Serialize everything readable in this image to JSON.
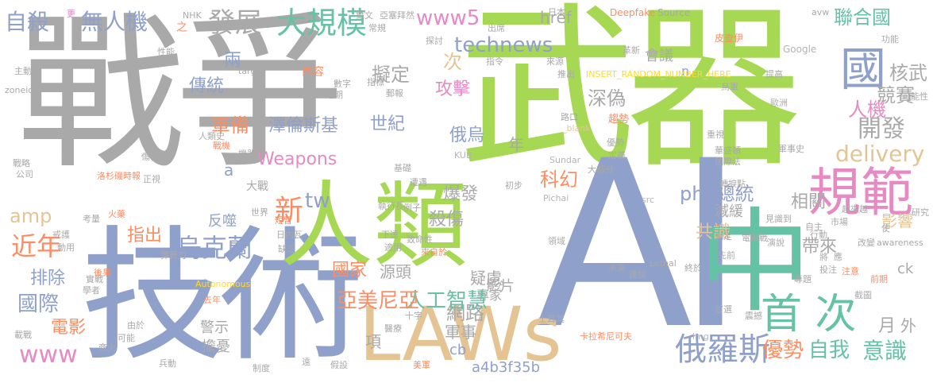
{
  "palette": {
    "gray": "#a9a9a9",
    "blue": "#8fa0cb",
    "green": "#a6d854",
    "teal": "#66c2a5",
    "orange": "#fc8d62",
    "pink": "#e78ac3",
    "tan": "#e5c494",
    "yellow": "#ffd92f"
  },
  "words": {
    "w_zhan_zheng": "戰爭",
    "w_wuqi": "武器",
    "w_ai": "AI",
    "w_jishu": "技術",
    "w_renlei": "人類",
    "w_zhong": "中",
    "w_laws": "LAWs",
    "w_guifan": "規範",
    "w_guo": "國",
    "w_dagui": "大規模",
    "w_fazhan": "發展",
    "w_zisha": "自殺",
    "w_wurenji": "無人機",
    "w_www5": "www5",
    "w_technews": "technews",
    "w_lianheguo": "聯合國",
    "w_hewu": "核武",
    "w_jingsai": "競賽",
    "w_renji": "人機",
    "w_kaifa": "開發",
    "w_delivery": "delivery",
    "w_xiangguan": "相關",
    "w_yingxiang": "影響",
    "w_dailai": "帶來",
    "w_jiansu": "減緩",
    "w_gongshi": "共識",
    "w_zongtong": "php總統",
    "w_shengce": "首 次",
    "w_eluosi": "俄羅斯",
    "w_youshi": "優勢",
    "w_ziwo": "自我",
    "w_yishi": "意識",
    "w_yue": "月",
    "w_wai": "外",
    "w_junshi": "軍事",
    "w_wanglu": "網路",
    "w_yingpian": "影片",
    "w_yilv": "疑慮",
    "w_zhuanjia": "專家",
    "w_ck": "ck",
    "w_rengong": "人工智慧",
    "w_yameiniya": "亞美尼亞",
    "w_guojia": "國家",
    "w_yuantou": "源頭",
    "w_wukelan": "烏克蘭",
    "w_zhichu": "指出",
    "w_fanshi": "反噬",
    "w_jinnian": "近年",
    "w_guoji": "國際",
    "w_paichu": "排除",
    "w_dianying": "電影",
    "w_www": "www",
    "w_amp": "amp",
    "w_xin": "新",
    "w_tw": "tw",
    "w_weapons": "Weapons",
    "w_a": "a",
    "w_dazhan": "大戰",
    "w_sha": "殺傷",
    "w_baofa": "爆發",
    "w_kehuan": "科幻",
    "w_nian": "年",
    "w_ewu": "俄烏",
    "w_shiji": "世紀",
    "w_zelunsiji": "澤倫斯基",
    "w_junbei": "軍備",
    "w_chuantong": "傳統",
    "w_liang": "兩",
    "w_nirding": "擬定",
    "w_gongji": "攻擊",
    "w_ci": "次",
    "w_shenwei": "深偽",
    "w_huiyi": "會議",
    "w_href": "href",
    "w_n": "n",
    "w_neirong": "內容",
    "w_jinggao": "警示",
    "w_danyou": "擔憂",
    "w_xiang": "項",
    "w_cb": "cb",
    "w_hash": "a4b3f35b",
    "w_deepfake": "Deepfake",
    "w_source": "Source",
    "w_google": "Google",
    "w_placeholder": "INSERT_RANDOM_NUMBER_HERE",
    "w_blank": "_blank",
    "w_autonomous": "Autonomous",
    "w_lethal": "Lethal",
    "w_awareness": "awareness",
    "w_pichai": "Pichai",
    "w_sundar": "Sundar",
    "w_kub": "KUB",
    "w_bla": "BLA",
    "w_zoneid": "zoneid",
    "w_target": "target",
    "w_img": "img",
    "w_src": "src",
    "w_avw": "avw",
    "w_nhk": "NHK",
    "w_geng": "更",
    "w_zhizhi": "之",
    "w_shexian": "攝文",
    "w_changjian": "常規",
    "w_yasaibai": "亞塞拜然",
    "w_tanta": "探討",
    "w_chuchang": "出席",
    "w_riben": "日本",
    "w_pichai_cn": "皮查伊",
    "w_gemin": "革新",
    "w_tigao": "提高",
    "w_kenengxing": "可能性",
    "w_ouzhou": "歐洲",
    "w_wuren": "烏軍",
    "w_junshishi": "軍事史",
    "w_huasheng": "華盛頓",
    "w_guojiafa": "國際法",
    "w_zhuanni": "轉捩點",
    "w_zhongshi": "重視",
    "w_laiyuan": "來源",
    "w_tuichu": "推出",
    "w_zhiling": "指令",
    "w_luokou": "路口",
    "w_qushi": "趨勢",
    "w_youshi2": "優勢",
    "w_dingyi": "定義",
    "w_dabufen": "大部分",
    "w_chubu": "初步",
    "w_jichu": "基礎",
    "w_zaoyu": "遭遇",
    "w_shijie": "世界",
    "w_duanyu": "短暫",
    "w_riwawa": "日內瓦",
    "w_queshao": "缺乏",
    "w_xiayou": "下達",
    "w_shiyong": "適用",
    "w_lizi": "例子",
    "w_zhiming": "致命性",
    "w_lingyu": "領域",
    "w_laizizai": "來自於",
    "w_weilai": "未來",
    "w_jianshe": "建設",
    "w_zhixing": "執行長",
    "w_kalan": "卡拉希尼可夫",
    "w_shiqi": "士耳其",
    "w_shizi": "十字",
    "w_yiliao": "醫療",
    "w_meijun": "美軍",
    "w_jiashe": "假設",
    "w_renyishi": "人類史",
    "w_zhanhui": "戰機",
    "w_jiqi": "機器",
    "w_zhengshi": "正視",
    "w_shanghai": "傷害",
    "w_gongsi": "公司",
    "w_zhanlue": "戰略",
    "w_lisheng": "洛杉磯時報",
    "w_huoyao": "火藥",
    "w_danyaodao": "彈簧刀",
    "w_dongyong": "動用",
    "w_shiwo": "實戰",
    "w_xuezhe": "學者",
    "w_zaizhan": "載戰",
    "w_houguo": "後果",
    "w_jiaohui": "戒護",
    "w_kaolv": "考量",
    "w_qu": "去年",
    "w_youyi": "由於",
    "w_kaneng": "可能",
    "w_shanghuo": "商火",
    "w_bingdong": "兵動",
    "w_zhidu": "制度",
    "w_yuanze": "遠",
    "w_zhenhuo": "震撼",
    "w_shouxuan": "首選",
    "w_zhongyu": "終於",
    "w_zhanxian": "專題",
    "w_jiang": "將",
    "w_shili": "前期",
    "w_jieguo": "截圖",
    "w_yanjiu": "研究",
    "w_shi": "使",
    "w_mandate": "應",
    "w_zhuandao": "注意",
    "w_gaisu": "改變",
    "w_jiaoyi": "投注",
    "w_shichang": "市場",
    "w_zizhu": "自主",
    "w_dianzhan": "電磁戰",
    "w_zhiding": "制定",
    "w_qiaoduan": "演說",
    "w_xianqian": "先前",
    "w_jian": "見識到",
    "w_xingdong": "行動",
    "w_yuejian": "越來越",
    "w_gongneng": "功能",
    "w_shuzi": "數字",
    "w_jinqi": "近期",
    "w_zhuanjia2": "郵報",
    "w_zhibiao": "指標",
    "w_xingneng": "性能",
    "w_zhujiao": "主動"
  }
}
